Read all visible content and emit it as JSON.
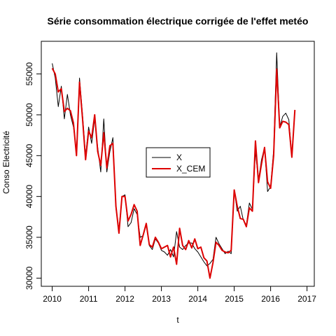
{
  "chart_data": {
    "type": "line",
    "title": "Série consommation électrique corrigée de l'effet metéo",
    "xlabel": "t",
    "ylabel": "Conso Electricité",
    "xlim": [
      2009.7,
      2017.2
    ],
    "ylim": [
      29000,
      59000
    ],
    "xticks": [
      2010,
      2011,
      2012,
      2013,
      2014,
      2015,
      2016,
      2017
    ],
    "yticks": [
      30000,
      35000,
      40000,
      45000,
      50000,
      55000
    ],
    "grid": false,
    "legend": {
      "position": "center",
      "entries": [
        "X",
        "X_CEM"
      ]
    },
    "colors": {
      "X": "#000000",
      "X_CEM": "#dd0000"
    },
    "x_start": 2010.0,
    "x_step_months": 1,
    "series": [
      {
        "name": "X",
        "values": [
          56300,
          54500,
          51000,
          53500,
          49500,
          52500,
          50000,
          48500,
          45500,
          54500,
          50000,
          45000,
          48500,
          46500,
          49500,
          46000,
          43000,
          49500,
          43000,
          45500,
          47200,
          38500,
          36000,
          40000,
          40200,
          36300,
          36800,
          38500,
          37800,
          35000,
          35200,
          36500,
          34000,
          33500,
          34800,
          34300,
          33400,
          33200,
          32800,
          33500,
          32600,
          35700,
          33800,
          33500,
          34000,
          34300,
          34300,
          33600,
          33200,
          32600,
          32000,
          31500,
          31800,
          32300,
          35000,
          34200,
          33600,
          33000,
          33300,
          33000,
          40800,
          38200,
          38800,
          37100,
          36500,
          39200,
          38400,
          45500,
          42000,
          44500,
          46000,
          40600,
          41200,
          45700,
          57600,
          48500,
          49800,
          50200,
          49400,
          45000,
          50500
        ]
      },
      {
        "name": "X_CEM",
        "values": [
          55700,
          55000,
          52800,
          53200,
          50400,
          50800,
          50500,
          49000,
          45000,
          54000,
          49500,
          44500,
          48000,
          47200,
          50000,
          45500,
          43800,
          47800,
          43500,
          46200,
          46500,
          38800,
          35500,
          40000,
          40000,
          37000,
          37800,
          39000,
          38200,
          34000,
          35300,
          36700,
          34100,
          33800,
          35000,
          34400,
          33600,
          33800,
          34000,
          32600,
          33800,
          31700,
          36100,
          34000,
          33500,
          34600,
          33700,
          34800,
          33600,
          33800,
          32500,
          32100,
          30000,
          31900,
          34400,
          34000,
          33400,
          33200,
          33100,
          33400,
          40800,
          38800,
          37300,
          37200,
          36300,
          38600,
          38200,
          46800,
          41700,
          44000,
          46000,
          41800,
          41000,
          45000,
          55600,
          48400,
          49200,
          49100,
          48800,
          44800,
          50600
        ]
      }
    ]
  }
}
